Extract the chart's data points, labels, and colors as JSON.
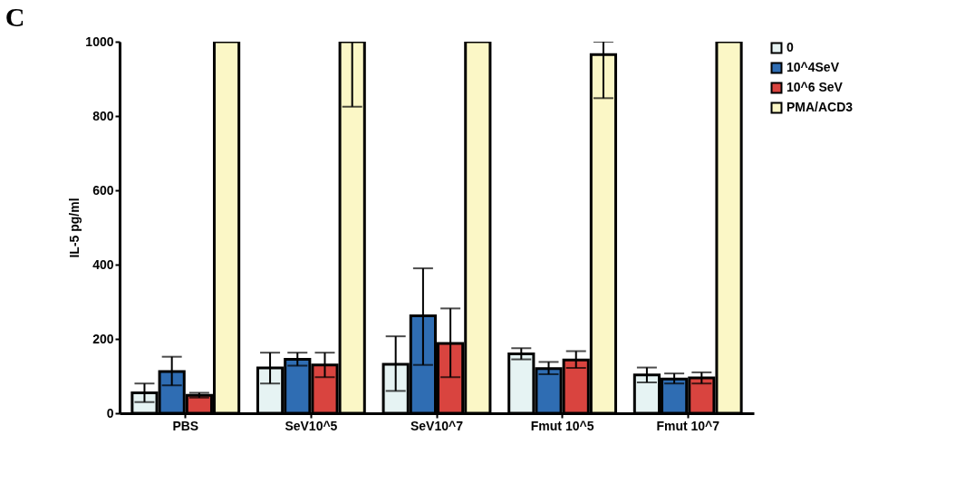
{
  "chart_data": {
    "type": "bar",
    "title": "C",
    "ylabel": "IL-5 pg/ml",
    "categories": [
      "PBS",
      "SeV10^5",
      "SeV10^7",
      "Fmut 10^5",
      "Fmut 10^7"
    ],
    "series": [
      {
        "name": "0",
        "color": "#e6f3f3",
        "values": [
          55,
          122,
          132,
          160,
          103
        ],
        "errors": [
          [
            30,
            80
          ],
          [
            80,
            163
          ],
          [
            60,
            207
          ],
          [
            145,
            175
          ],
          [
            83,
            123
          ]
        ]
      },
      {
        "name": "10^4SeV",
        "color": "#2f6db3",
        "values": [
          112,
          145,
          262,
          120,
          92
        ],
        "errors": [
          [
            75,
            152
          ],
          [
            128,
            163
          ],
          [
            130,
            390
          ],
          [
            105,
            138
          ],
          [
            80,
            107
          ]
        ]
      },
      {
        "name": "10^6 SeV",
        "color": "#d9443f",
        "values": [
          48,
          130,
          188,
          143,
          95
        ],
        "errors": [
          [
            42,
            55
          ],
          [
            97,
            163
          ],
          [
            97,
            282
          ],
          [
            122,
            167
          ],
          [
            80,
            110
          ]
        ]
      },
      {
        "name": "PMA/ACD3",
        "color": "#fbf7c6",
        "values": [
          1000,
          1000,
          1000,
          965,
          1000
        ],
        "errors": [
          null,
          [
            825,
            1000
          ],
          null,
          [
            848,
            1000
          ],
          null
        ]
      }
    ],
    "ylim": [
      0,
      1000
    ],
    "yticks": [
      0,
      200,
      400,
      600,
      800,
      1000
    ],
    "grid": false,
    "legend": "right"
  }
}
